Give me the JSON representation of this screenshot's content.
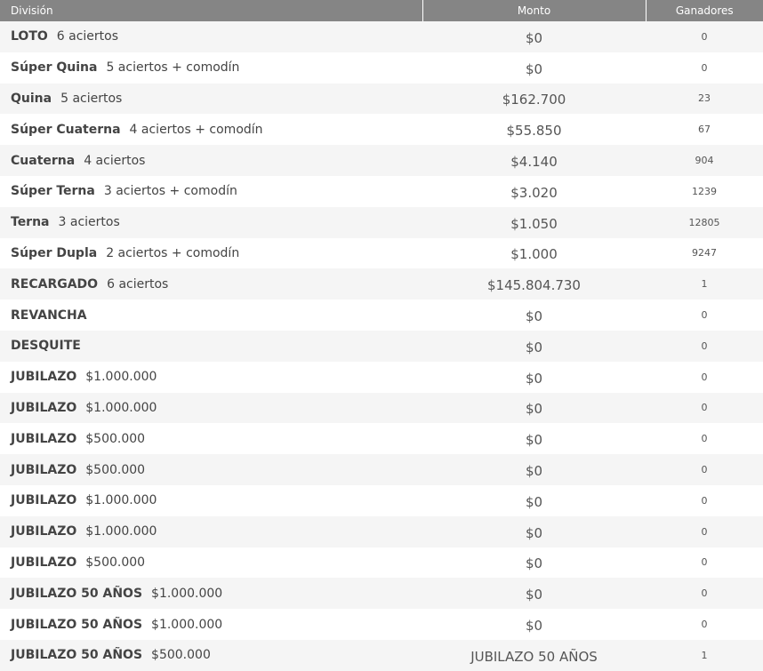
{
  "header": {
    "division": "División",
    "monto": "Monto",
    "ganadores": "Ganadores"
  },
  "rows": [
    {
      "name": "LOTO",
      "detail": "6 aciertos",
      "monto": "$0",
      "ganadores": "0"
    },
    {
      "name": "Súper Quina",
      "detail": "5 aciertos + comodín",
      "monto": "$0",
      "ganadores": "0"
    },
    {
      "name": "Quina",
      "detail": "5 aciertos",
      "monto": "$162.700",
      "ganadores": "23"
    },
    {
      "name": "Súper Cuaterna",
      "detail": "4 aciertos + comodín",
      "monto": "$55.850",
      "ganadores": "67"
    },
    {
      "name": "Cuaterna",
      "detail": "4 aciertos",
      "monto": "$4.140",
      "ganadores": "904"
    },
    {
      "name": "Súper Terna",
      "detail": "3 aciertos + comodín",
      "monto": "$3.020",
      "ganadores": "1239"
    },
    {
      "name": "Terna",
      "detail": "3 aciertos",
      "monto": "$1.050",
      "ganadores": "12805"
    },
    {
      "name": "Súper Dupla",
      "detail": "2 aciertos + comodín",
      "monto": "$1.000",
      "ganadores": "9247"
    },
    {
      "name": "RECARGADO",
      "detail": "6 aciertos",
      "monto": "$145.804.730",
      "ganadores": "1"
    },
    {
      "name": "REVANCHA",
      "detail": "",
      "monto": "$0",
      "ganadores": "0"
    },
    {
      "name": "DESQUITE",
      "detail": "",
      "monto": "$0",
      "ganadores": "0"
    },
    {
      "name": "JUBILAZO",
      "detail": "$1.000.000",
      "monto": "$0",
      "ganadores": "0"
    },
    {
      "name": "JUBILAZO",
      "detail": "$1.000.000",
      "monto": "$0",
      "ganadores": "0"
    },
    {
      "name": "JUBILAZO",
      "detail": "$500.000",
      "monto": "$0",
      "ganadores": "0"
    },
    {
      "name": "JUBILAZO",
      "detail": "$500.000",
      "monto": "$0",
      "ganadores": "0"
    },
    {
      "name": "JUBILAZO",
      "detail": "$1.000.000",
      "monto": "$0",
      "ganadores": "0"
    },
    {
      "name": "JUBILAZO",
      "detail": "$1.000.000",
      "monto": "$0",
      "ganadores": "0"
    },
    {
      "name": "JUBILAZO",
      "detail": "$500.000",
      "monto": "$0",
      "ganadores": "0"
    },
    {
      "name": "JUBILAZO 50 AÑOS",
      "detail": "$1.000.000",
      "monto": "$0",
      "ganadores": "0"
    },
    {
      "name": "JUBILAZO 50 AÑOS",
      "detail": "$1.000.000",
      "monto": "$0",
      "ganadores": "0"
    },
    {
      "name": "JUBILAZO 50 AÑOS",
      "detail": "$500.000",
      "monto": "JUBILAZO 50 AÑOS",
      "ganadores": "1"
    }
  ]
}
